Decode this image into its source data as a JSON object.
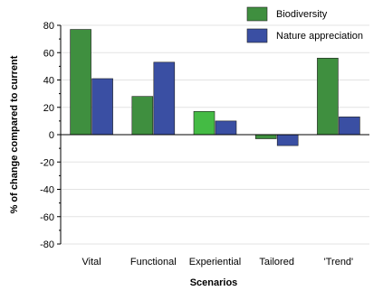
{
  "chart_data": {
    "type": "bar",
    "title": "",
    "xlabel": "Scenarios",
    "ylabel": "% of change compared to current",
    "categories": [
      "Vital",
      "Functional",
      "Experiential",
      "Tailored",
      "'Trend'"
    ],
    "series": [
      {
        "name": "Biodiversity",
        "color": "#3f8f3f",
        "values": [
          77,
          28,
          17,
          -3,
          56
        ]
      },
      {
        "name": "Nature appreciation",
        "color": "#3a4fa3",
        "values": [
          41,
          53,
          10,
          -8,
          13
        ]
      }
    ],
    "highlight": {
      "series": 0,
      "index": 2,
      "color": "#44bb44"
    },
    "ylim": [
      -80,
      80
    ],
    "yticks": [
      -80,
      -60,
      -40,
      -20,
      0,
      20,
      40,
      60,
      80
    ],
    "ytick_labels": [
      "-80",
      "-60",
      "-40",
      "-20",
      "0",
      "20",
      "40",
      "60",
      "80"
    ],
    "grid": true,
    "legend_position": "top-right"
  }
}
